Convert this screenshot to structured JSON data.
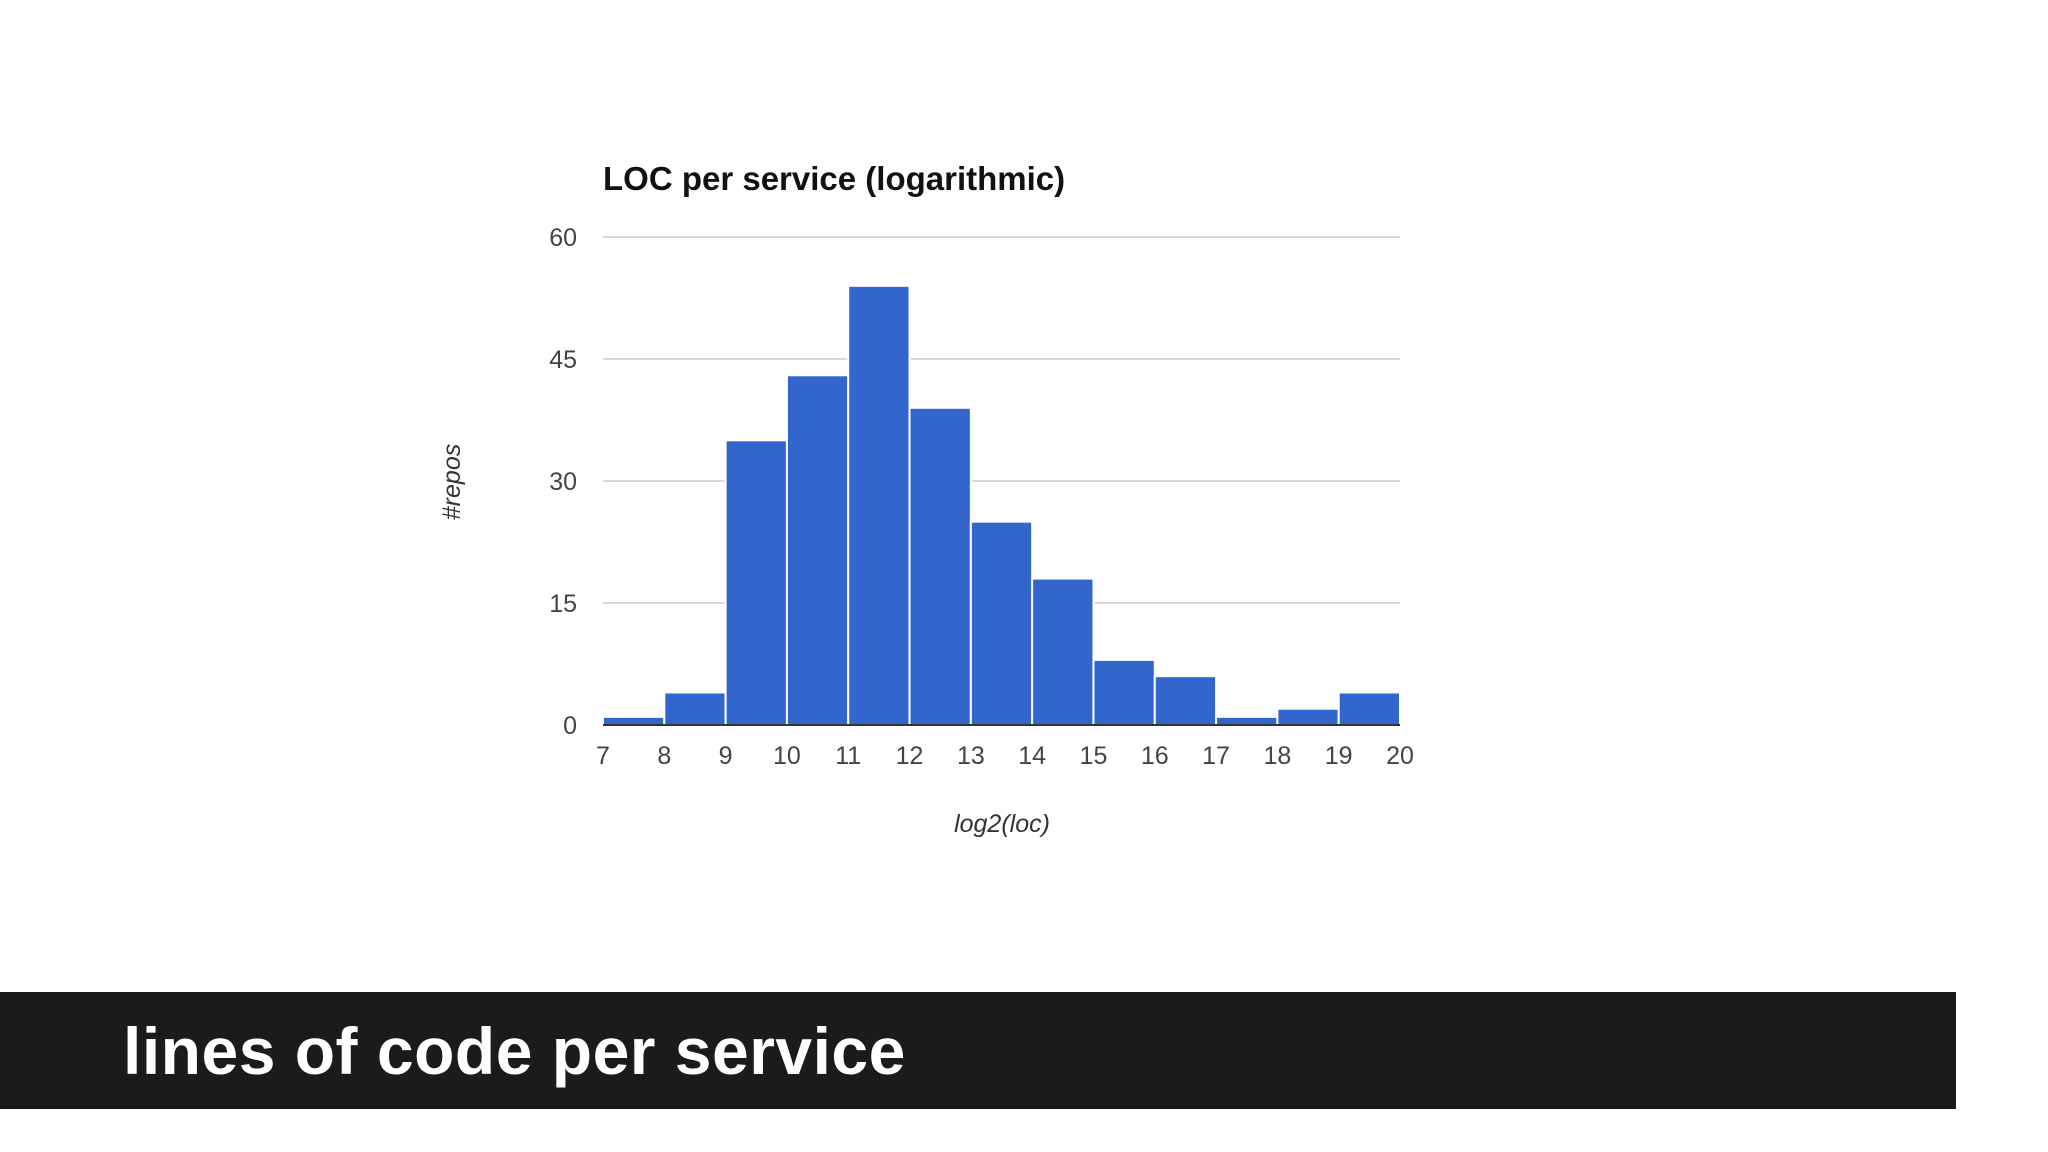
{
  "caption": {
    "text": "lines of code per service"
  },
  "colors": {
    "bar": "#3366cc",
    "caption_background": "#1b1b1b",
    "caption_text": "#ffffff"
  },
  "chart_data": {
    "type": "bar",
    "title": "LOC per service (logarithmic)",
    "xlabel": "log2(loc)",
    "ylabel": "#repos",
    "x_ticks": [
      7,
      8,
      9,
      10,
      11,
      12,
      13,
      14,
      15,
      16,
      17,
      18,
      19,
      20
    ],
    "xlim": [
      7,
      20
    ],
    "y_ticks": [
      0,
      15,
      30,
      45,
      60
    ],
    "ylim": [
      0,
      60
    ],
    "grid": true,
    "bins": [
      {
        "x0": 7,
        "x1": 8,
        "value": 1
      },
      {
        "x0": 8,
        "x1": 9,
        "value": 4
      },
      {
        "x0": 9,
        "x1": 10,
        "value": 35
      },
      {
        "x0": 10,
        "x1": 11,
        "value": 43
      },
      {
        "x0": 11,
        "x1": 12,
        "value": 54
      },
      {
        "x0": 12,
        "x1": 13,
        "value": 39
      },
      {
        "x0": 13,
        "x1": 14,
        "value": 25
      },
      {
        "x0": 14,
        "x1": 15,
        "value": 18
      },
      {
        "x0": 15,
        "x1": 16,
        "value": 8
      },
      {
        "x0": 16,
        "x1": 17,
        "value": 6
      },
      {
        "x0": 17,
        "x1": 18,
        "value": 1
      },
      {
        "x0": 18,
        "x1": 19,
        "value": 2
      },
      {
        "x0": 19,
        "x1": 20,
        "value": 4
      }
    ]
  }
}
